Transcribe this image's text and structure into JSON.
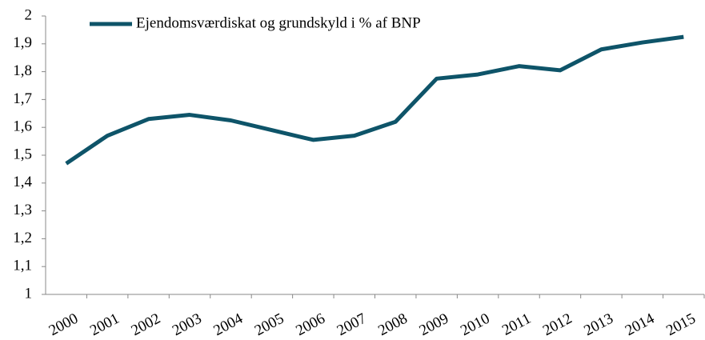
{
  "chart_data": {
    "type": "line",
    "categories": [
      "2000",
      "2001",
      "2002",
      "2003",
      "2004",
      "2005",
      "2006",
      "2007",
      "2008",
      "2009",
      "2010",
      "2011",
      "2012",
      "2013",
      "2014",
      "2015"
    ],
    "series": [
      {
        "name": "Ejendomsværdiskat og grundskyld i % af BNP",
        "color": "#0e5469",
        "values": [
          1.47,
          1.57,
          1.63,
          1.645,
          1.625,
          1.59,
          1.555,
          1.57,
          1.62,
          1.775,
          1.79,
          1.82,
          1.805,
          1.88,
          1.905,
          1.925
        ]
      }
    ],
    "ylim": [
      1,
      2
    ],
    "yticks": [
      1,
      {
        "value": 1.1,
        "label": "1,1"
      },
      {
        "value": 1.2,
        "label": "1,2"
      },
      {
        "value": 1.3,
        "label": "1,3"
      },
      {
        "value": 1.4,
        "label": "1,4"
      },
      {
        "value": 1.5,
        "label": "1,5"
      },
      {
        "value": 1.6,
        "label": "1,6"
      },
      {
        "value": 1.7,
        "label": "1,7"
      },
      {
        "value": 1.8,
        "label": "1,8"
      },
      {
        "value": 1.9,
        "label": "1,9"
      },
      2
    ],
    "grid": false,
    "legend": "upper left"
  }
}
